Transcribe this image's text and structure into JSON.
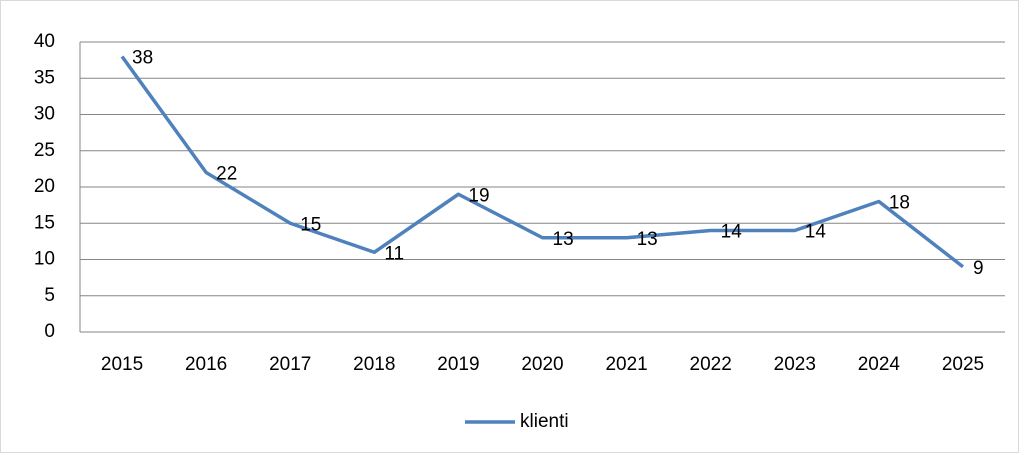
{
  "chart_data": {
    "type": "line",
    "categories": [
      "2015",
      "2016",
      "2017",
      "2018",
      "2019",
      "2020",
      "2021",
      "2022",
      "2023",
      "2024",
      "2025"
    ],
    "series": [
      {
        "name": "klienti",
        "color": "#4f81bd",
        "values": [
          38,
          22,
          15,
          11,
          19,
          13,
          13,
          14,
          14,
          18,
          9
        ]
      }
    ],
    "ylim": [
      0,
      40
    ],
    "yticks": [
      0,
      5,
      10,
      15,
      20,
      25,
      30,
      35,
      40
    ],
    "grid": true,
    "legend": "bottom"
  }
}
